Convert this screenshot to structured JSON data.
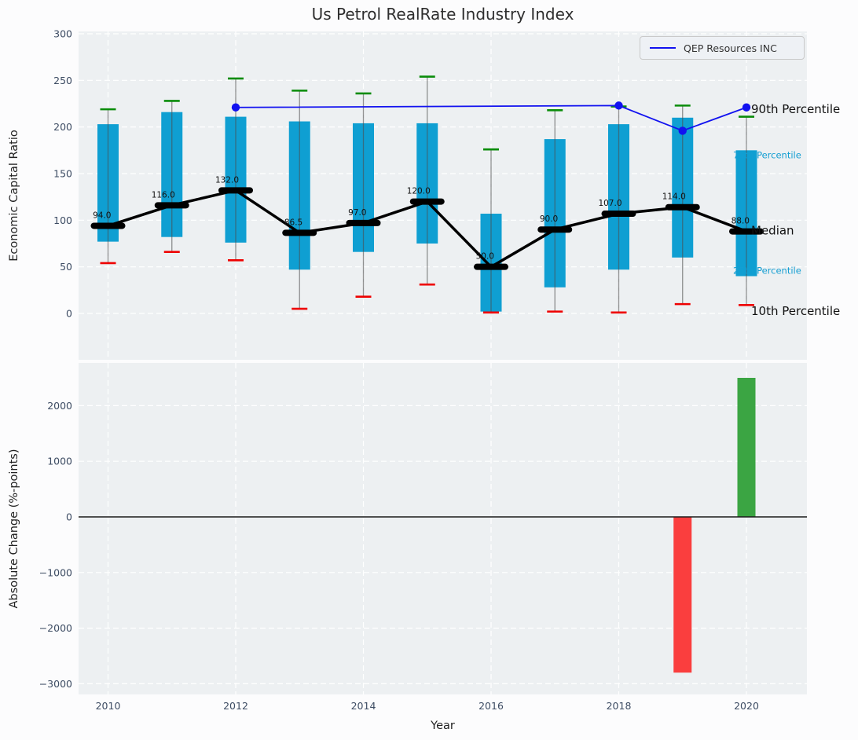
{
  "title": "Us Petrol RealRate Industry Index",
  "colors": {
    "figure_bg": "#fcfcfd",
    "axes_bg": "#edf0f2",
    "grid": "#ffffff",
    "tick_label": "#3d4c63",
    "title": "#2e2e2e",
    "box_fill": "#0f9fd2",
    "whisker": "#4d4d4d",
    "cap_top": "#0a8c0a",
    "cap_bottom": "#ee0000",
    "median": "#000000",
    "qep_line": "#1212f0",
    "bar_positive": "#3ba543",
    "bar_negative": "#fa3e3e",
    "annotation_primary": "#111111",
    "annotation_secondary": "#149ed2",
    "zero_line": "#1a1a1a"
  },
  "chart_data": [
    {
      "type": "boxplot",
      "title": "Us Petrol RealRate Industry Index",
      "ylabel": "Economic Capital Ratio",
      "ylim": [
        -50,
        302
      ],
      "yticks": [
        {
          "v": 0,
          "label": "0"
        },
        {
          "v": 50,
          "label": "50"
        },
        {
          "v": 100,
          "label": "100"
        },
        {
          "v": 150,
          "label": "150"
        },
        {
          "v": 200,
          "label": "200"
        },
        {
          "v": 250,
          "label": "250"
        },
        {
          "v": 300,
          "label": "300"
        }
      ],
      "years": [
        2010,
        2011,
        2012,
        2013,
        2014,
        2015,
        2016,
        2017,
        2018,
        2019,
        2020
      ],
      "series": {
        "p90": [
          219,
          228,
          252,
          239,
          236,
          254,
          176,
          218,
          222,
          223,
          211
        ],
        "p75": [
          203,
          216,
          211,
          206,
          204,
          204,
          107,
          187,
          203,
          210,
          175
        ],
        "median": [
          94,
          116,
          132,
          86.5,
          97,
          120,
          50,
          90,
          107,
          114,
          88
        ],
        "p25": [
          77,
          82,
          76,
          47,
          66,
          75,
          2,
          28,
          47,
          60,
          40
        ],
        "p10": [
          54,
          66,
          57,
          5,
          18,
          31,
          1,
          2,
          1,
          10,
          9
        ]
      },
      "median_labels": [
        "94.0",
        "116.0",
        "132.0",
        "86.5",
        "97.0",
        "120.0",
        "50.0",
        "90.0",
        "107.0",
        "114.0",
        "88.0"
      ],
      "qep_line": {
        "name": "QEP Resources INC",
        "x": [
          2012,
          2018,
          2019,
          2020
        ],
        "y": [
          221,
          223,
          196,
          221
        ]
      },
      "annotations": [
        {
          "text": "90th Percentile",
          "v": 219,
          "style": "primary"
        },
        {
          "text": "75th Percentile",
          "v": 170,
          "style": "secondary"
        },
        {
          "text": "Median",
          "v": 89,
          "style": "primary"
        },
        {
          "text": "25th Percentile",
          "v": 46,
          "style": "secondary"
        },
        {
          "text": "10th Percentile",
          "v": 2.5,
          "style": "primary"
        }
      ]
    },
    {
      "type": "bar",
      "ylabel": "Absolute Change (%-points)",
      "xlabel": "Year",
      "ylim": [
        -3192,
        2768
      ],
      "yticks": [
        {
          "v": -3000,
          "label": "−3000"
        },
        {
          "v": -2000,
          "label": "−2000"
        },
        {
          "v": -1000,
          "label": "−1000"
        },
        {
          "v": 0,
          "label": "0"
        },
        {
          "v": 1000,
          "label": "1000"
        },
        {
          "v": 2000,
          "label": "2000"
        }
      ],
      "xticks": [
        {
          "v": 2010,
          "label": "2010"
        },
        {
          "v": 2012,
          "label": "2012"
        },
        {
          "v": 2014,
          "label": "2014"
        },
        {
          "v": 2016,
          "label": "2016"
        },
        {
          "v": 2018,
          "label": "2018"
        },
        {
          "v": 2020,
          "label": "2020"
        }
      ],
      "bars": [
        {
          "year": 2019,
          "value": -2800,
          "color_key": "bar_negative"
        },
        {
          "year": 2020,
          "value": 2500,
          "color_key": "bar_positive"
        }
      ]
    }
  ]
}
